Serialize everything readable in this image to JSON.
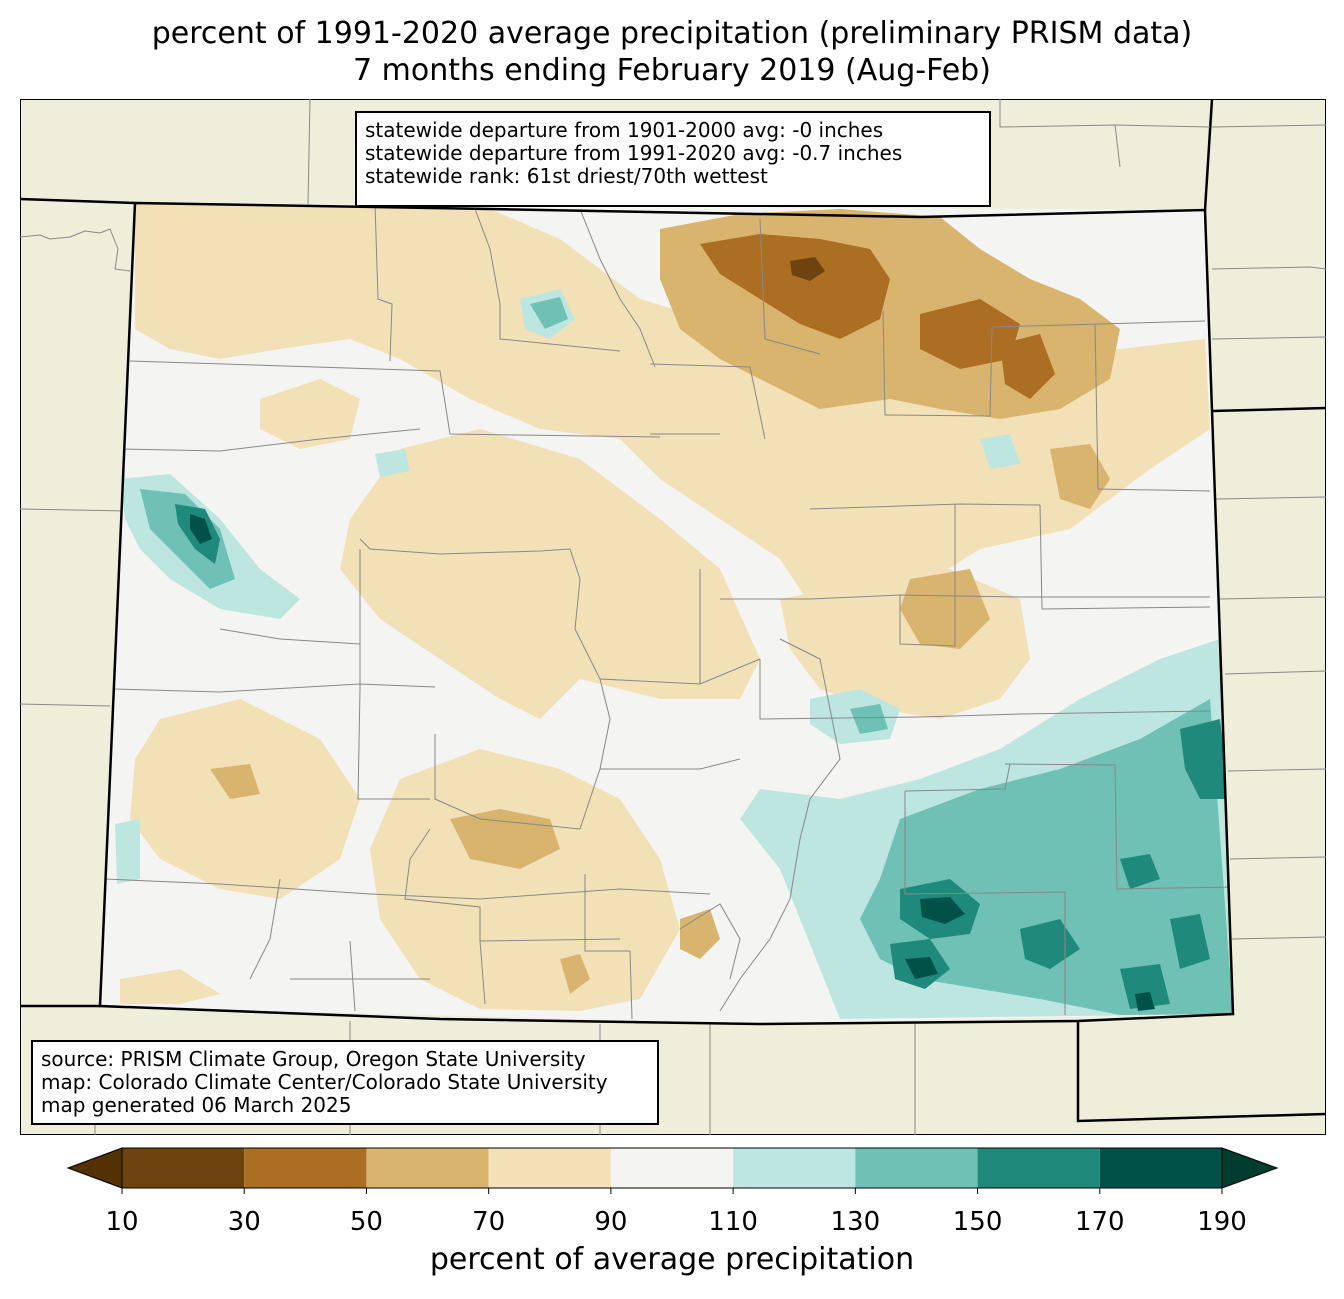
{
  "title": {
    "line1": "percent of 1991-2020 average precipitation (preliminary PRISM data)",
    "line2": "7 months ending February 2019 (Aug-Feb)"
  },
  "stats_box": {
    "line1": "statewide departure from 1901-2000 avg: -0 inches",
    "line2": "statewide departure from 1991-2020 avg: -0.7 inches",
    "line3": "statewide rank: 61st driest/70th wettest"
  },
  "source_box": {
    "line1": "source: PRISM Climate Group, Oregon State University",
    "line2": "map: Colorado Climate Center/Colorado State University",
    "line3": "map generated 06 March 2025"
  },
  "colorbar": {
    "label": "percent of average precipitation",
    "ticks": [
      "10",
      "30",
      "50",
      "70",
      "90",
      "110",
      "130",
      "150",
      "170",
      "190"
    ],
    "colors": [
      "#6f4310",
      "#ab6e23",
      "#d9b46e",
      "#f2e1b7",
      "#f4f4f2",
      "#bde6e1",
      "#6ec1b4",
      "#1f8a7c",
      "#005248"
    ],
    "under_color": "#543005",
    "over_color": "#003c30"
  },
  "map": {
    "background_color": "#efeedb",
    "state_fill": "#f4f4f2",
    "state_border_color": "#000000",
    "county_line_color": "#888888"
  }
}
